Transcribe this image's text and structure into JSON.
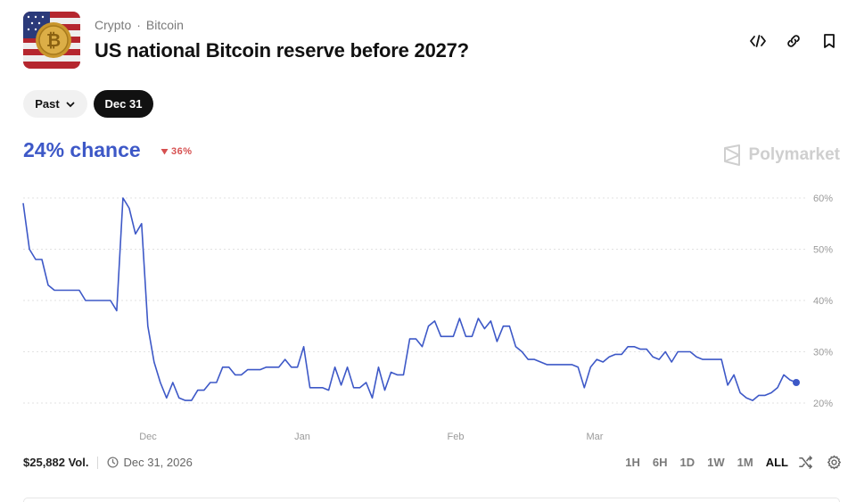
{
  "header": {
    "category": "Crypto",
    "separator": "·",
    "subcategory": "Bitcoin",
    "title": "US national Bitcoin reserve before 2027?"
  },
  "filters": {
    "past_label": "Past",
    "date_label": "Dec 31"
  },
  "summary": {
    "chance": "24% chance",
    "change": "36%",
    "change_direction": "down"
  },
  "brand": "Polymarket",
  "footer": {
    "volume": "$25,882 Vol.",
    "end_date": "Dec 31, 2026",
    "ranges": [
      "1H",
      "6H",
      "1D",
      "1W",
      "1M",
      "ALL"
    ],
    "active_range": "ALL"
  },
  "colors": {
    "line": "#3d58c7",
    "chance": "#3d58c7",
    "change": "#d65050",
    "gridline": "#e2e2e2",
    "axis_text": "#9a9a9a"
  },
  "chart_data": {
    "type": "line",
    "x_tick_labels": [
      "Dec",
      "Jan",
      "Feb",
      "Mar"
    ],
    "y_tick_labels": [
      "60%",
      "50%",
      "40%",
      "30%",
      "20%"
    ],
    "ylim": [
      20,
      60
    ],
    "grid": "horizontal dotted",
    "series": [
      {
        "values": [
          59,
          50,
          48,
          48,
          43,
          42,
          42,
          42,
          42,
          42,
          40,
          40,
          40,
          40,
          40,
          38,
          60,
          58,
          53,
          55,
          35,
          28,
          24,
          21,
          24,
          21,
          20.5,
          20.5,
          22.5,
          22.5,
          24,
          24,
          27,
          27,
          25.5,
          25.5,
          26.5,
          26.5,
          26.5,
          27,
          27,
          27,
          28.5,
          27,
          27,
          31,
          23,
          23,
          23,
          22.5,
          27,
          23.5,
          27,
          23,
          23,
          24,
          21,
          27,
          22.5,
          26,
          25.5,
          25.5,
          32.5,
          32.5,
          31,
          35,
          36,
          33,
          33,
          33,
          36.5,
          33,
          33,
          36.5,
          34.5,
          36,
          32,
          35,
          35,
          31,
          30,
          28.5,
          28.5,
          28,
          27.5,
          27.5,
          27.5,
          27.5,
          27.5,
          27,
          23,
          27,
          28.5,
          28,
          29,
          29.5,
          29.5,
          31,
          31,
          30.5,
          30.5,
          29,
          28.5,
          30,
          28,
          30,
          30,
          30,
          29,
          28.5,
          28.5,
          28.5,
          28.5,
          23.5,
          25.5,
          22,
          21,
          20.5,
          21.5,
          21.5,
          22,
          23,
          25.5,
          24.5,
          24
        ]
      }
    ]
  }
}
